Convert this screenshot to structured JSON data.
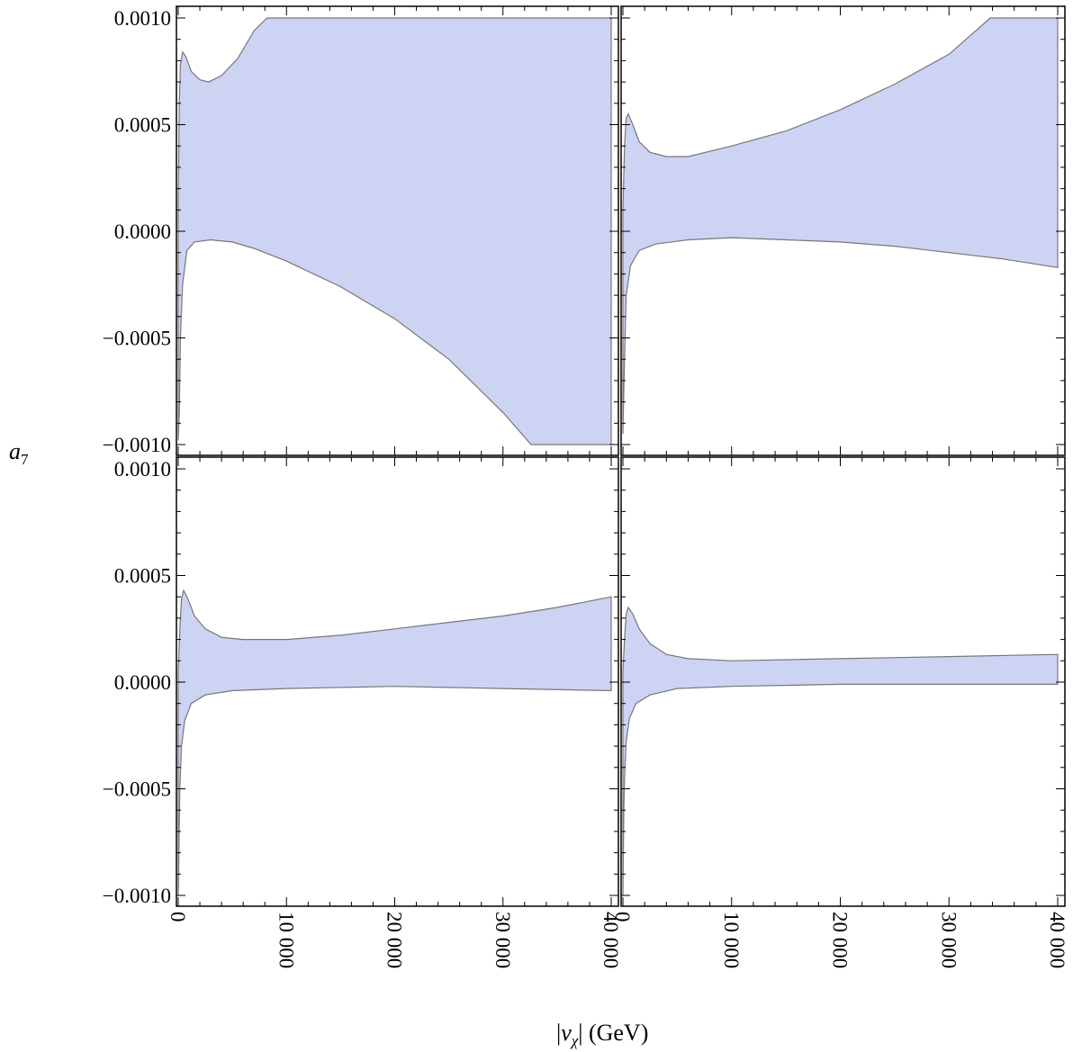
{
  "chart_data": {
    "type": "area",
    "xlabel": "|v_χ| (GeV)",
    "xlabel_parts": {
      "pre": "|",
      "v": "v",
      "sub": "χ",
      "post": "| (GeV)"
    },
    "ylabel": "a₇",
    "ylabel_parts": {
      "a": "a",
      "sub": "7"
    },
    "xlim": [
      0,
      40000
    ],
    "ylim": [
      -0.001,
      0.001
    ],
    "x_ticks": [
      0,
      10000,
      20000,
      30000,
      40000
    ],
    "x_tick_labels": [
      "0",
      "10 000",
      "20 000",
      "30 000",
      "40 000"
    ],
    "y_ticks": [
      -0.001,
      -0.0005,
      0,
      0.0005,
      0.001
    ],
    "y_tick_labels": [
      "−0.0010",
      "−0.0005",
      "0.0000",
      "0.0005",
      "0.0010"
    ],
    "fill_color": "#cdd3f3",
    "edge_color": "#777777",
    "grid": false,
    "panels": [
      {
        "position": "top-left",
        "upper": [
          [
            0,
            0.00015
          ],
          [
            100,
            0.0006
          ],
          [
            200,
            0.00078
          ],
          [
            400,
            0.00084
          ],
          [
            700,
            0.00082
          ],
          [
            1200,
            0.00075
          ],
          [
            2000,
            0.00071
          ],
          [
            2800,
            0.0007
          ],
          [
            4000,
            0.00073
          ],
          [
            5500,
            0.00081
          ],
          [
            7000,
            0.00094
          ],
          [
            8200,
            0.001
          ],
          [
            40000,
            0.001
          ]
        ],
        "lower": [
          [
            40000,
            -0.001
          ],
          [
            32600,
            -0.001
          ],
          [
            30000,
            -0.00085
          ],
          [
            25000,
            -0.0006
          ],
          [
            20000,
            -0.00041
          ],
          [
            15000,
            -0.00026
          ],
          [
            10000,
            -0.00014
          ],
          [
            7000,
            -8e-05
          ],
          [
            5000,
            -5e-05
          ],
          [
            3000,
            -4e-05
          ],
          [
            1500,
            -5e-05
          ],
          [
            800,
            -9e-05
          ],
          [
            400,
            -0.00025
          ],
          [
            200,
            -0.0005
          ],
          [
            100,
            -0.00085
          ],
          [
            0,
            -0.00098
          ]
        ]
      },
      {
        "position": "top-right",
        "upper": [
          [
            0,
            0.0001
          ],
          [
            150,
            0.0004
          ],
          [
            300,
            0.00053
          ],
          [
            500,
            0.00055
          ],
          [
            900,
            0.0005
          ],
          [
            1500,
            0.00042
          ],
          [
            2500,
            0.00037
          ],
          [
            4000,
            0.00035
          ],
          [
            6000,
            0.00035
          ],
          [
            10000,
            0.0004
          ],
          [
            15000,
            0.00047
          ],
          [
            20000,
            0.00057
          ],
          [
            25000,
            0.00069
          ],
          [
            30000,
            0.00083
          ],
          [
            33800,
            0.001
          ],
          [
            40000,
            0.001
          ]
        ],
        "lower": [
          [
            40000,
            -0.00017
          ],
          [
            35000,
            -0.00013
          ],
          [
            30000,
            -0.0001
          ],
          [
            25000,
            -7e-05
          ],
          [
            20000,
            -5e-05
          ],
          [
            15000,
            -4e-05
          ],
          [
            10000,
            -3e-05
          ],
          [
            6000,
            -4e-05
          ],
          [
            3000,
            -6e-05
          ],
          [
            1500,
            -9e-05
          ],
          [
            700,
            -0.00016
          ],
          [
            300,
            -0.0003
          ],
          [
            150,
            -0.0006
          ],
          [
            0,
            -0.00095
          ]
        ]
      },
      {
        "position": "bottom-left",
        "upper": [
          [
            0,
            5e-05
          ],
          [
            150,
            0.00025
          ],
          [
            300,
            0.00039
          ],
          [
            500,
            0.00043
          ],
          [
            900,
            0.00039
          ],
          [
            1500,
            0.00031
          ],
          [
            2500,
            0.00025
          ],
          [
            4000,
            0.00021
          ],
          [
            6000,
            0.0002
          ],
          [
            10000,
            0.0002
          ],
          [
            15000,
            0.00022
          ],
          [
            20000,
            0.00025
          ],
          [
            25000,
            0.00028
          ],
          [
            30000,
            0.00031
          ],
          [
            35000,
            0.00035
          ],
          [
            40000,
            0.0004
          ]
        ],
        "lower": [
          [
            40000,
            -4e-05
          ],
          [
            30000,
            -3e-05
          ],
          [
            20000,
            -2e-05
          ],
          [
            10000,
            -3e-05
          ],
          [
            5000,
            -4e-05
          ],
          [
            2500,
            -6e-05
          ],
          [
            1200,
            -0.0001
          ],
          [
            600,
            -0.00018
          ],
          [
            300,
            -0.0003
          ],
          [
            150,
            -0.0005
          ],
          [
            80,
            -0.0007
          ],
          [
            30,
            -0.00095
          ],
          [
            0,
            -0.001
          ]
        ]
      },
      {
        "position": "bottom-right",
        "upper": [
          [
            0,
            5e-05
          ],
          [
            150,
            0.0002
          ],
          [
            300,
            0.00032
          ],
          [
            500,
            0.00035
          ],
          [
            900,
            0.00032
          ],
          [
            1500,
            0.00025
          ],
          [
            2500,
            0.00018
          ],
          [
            4000,
            0.00013
          ],
          [
            6000,
            0.00011
          ],
          [
            10000,
            0.0001
          ],
          [
            20000,
            0.00011
          ],
          [
            30000,
            0.00012
          ],
          [
            40000,
            0.00013
          ]
        ],
        "lower": [
          [
            40000,
            -1e-05
          ],
          [
            30000,
            -1e-05
          ],
          [
            20000,
            -1e-05
          ],
          [
            10000,
            -2e-05
          ],
          [
            5000,
            -3e-05
          ],
          [
            2500,
            -6e-05
          ],
          [
            1200,
            -0.0001
          ],
          [
            600,
            -0.00017
          ],
          [
            300,
            -0.00028
          ],
          [
            150,
            -0.00045
          ],
          [
            80,
            -0.0006
          ],
          [
            30,
            -0.00085
          ],
          [
            0,
            -0.001
          ]
        ]
      }
    ]
  }
}
